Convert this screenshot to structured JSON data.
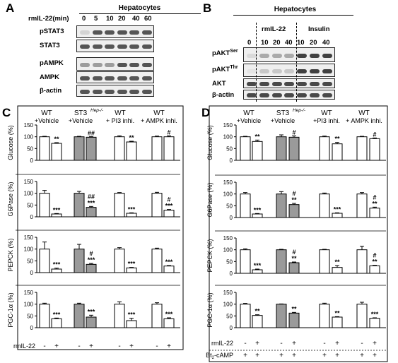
{
  "panel_labels": {
    "a": "A",
    "b": "B",
    "c": "C",
    "d": "D"
  },
  "panel_a": {
    "title": "Hepatocytes",
    "time_label": "rmIL-22(min)",
    "time_points": [
      "0",
      "5",
      "10",
      "20",
      "40",
      "60"
    ],
    "rows": [
      "pSTAT3",
      "STAT3",
      "pAMPK",
      "AMPK",
      "β-actin"
    ]
  },
  "panel_b": {
    "title": "Hepatocytes",
    "zero": "0",
    "group1": "rmIL-22",
    "group2": "Insulin",
    "time_points": [
      "10",
      "20",
      "40",
      "10",
      "20",
      "40"
    ],
    "rows": [
      {
        "base": "pAKT",
        "sup": "Ser"
      },
      {
        "base": "pAKT",
        "sup": "Thr"
      },
      {
        "base": "AKT",
        "sup": ""
      },
      {
        "base": "β-actin",
        "sup": ""
      }
    ]
  },
  "groups_c": [
    {
      "line1": "WT",
      "line2": "+Vehicle"
    },
    {
      "line1": "ST3",
      "sup": "Hep-/-",
      "line2": "+Vehicle"
    },
    {
      "line1": "WT",
      "line2": "+ PI3 inhi."
    },
    {
      "line1": "WT",
      "line2": "+ AMPK inhi."
    }
  ],
  "groups_d": [
    {
      "line1": "WT",
      "line2": "+Vehicle"
    },
    {
      "line1": "ST3",
      "sup": "Hep-/-",
      "line2": "+Vehicle"
    },
    {
      "line1": "WT",
      "line2": "+PI3 inhi."
    },
    {
      "line1": "WT",
      "line2": "+ AMPK inhi."
    }
  ],
  "row_labels": {
    "c": [
      "Glucose (%)",
      "G6Pase (%)",
      "PEPCK (%)",
      "PGC-1α (%)"
    ],
    "d": [
      "Glucose (%)",
      "G6Pase (%)",
      "PEPCK (%)",
      "PGC-1α (%)"
    ]
  },
  "treatment_c": {
    "label": "rmIL-22",
    "signs": [
      "-",
      "+",
      "-",
      "+",
      "-",
      "+",
      "-",
      "+"
    ]
  },
  "treatment_d": [
    {
      "label": "rmIL-22",
      "signs": [
        "-",
        "+",
        "-",
        "+",
        "-",
        "+",
        "-",
        "+"
      ]
    },
    {
      "label": "Bt",
      "sub": "2",
      "suffix": "-cAMP",
      "signs": [
        "+",
        "+",
        "+",
        "+",
        "+",
        "+",
        "+",
        "+"
      ]
    }
  ],
  "chart_data": [
    {
      "panel": "C",
      "row": "Glucose",
      "type": "bar",
      "ylabel": "Glucose (%)",
      "ylim": [
        0,
        150
      ],
      "yticks": [
        0,
        50,
        100,
        150
      ],
      "values": [
        100,
        72,
        100,
        98,
        100,
        78,
        100,
        100
      ],
      "errors": [
        2,
        3,
        2,
        3,
        4,
        3,
        3,
        4
      ],
      "fills": [
        "white",
        "white",
        "gray",
        "gray",
        "white",
        "white",
        "white",
        "white"
      ],
      "annotations": [
        "",
        "**",
        "",
        "##",
        "",
        "**",
        "",
        "#"
      ]
    },
    {
      "panel": "C",
      "row": "G6Pase",
      "type": "bar",
      "ylabel": "G6Pase (%)",
      "ylim": [
        0,
        150
      ],
      "yticks": [
        0,
        50,
        100,
        150
      ],
      "values": [
        100,
        12,
        100,
        40,
        100,
        15,
        100,
        28
      ],
      "errors": [
        12,
        2,
        8,
        4,
        3,
        2,
        4,
        3
      ],
      "fills": [
        "white",
        "white",
        "gray",
        "gray",
        "white",
        "white",
        "white",
        "white"
      ],
      "annotations": [
        "",
        "***",
        "",
        "##|***",
        "",
        "***",
        "",
        "#|***"
      ]
    },
    {
      "panel": "C",
      "row": "PEPCK",
      "type": "bar",
      "ylabel": "PEPCK (%)",
      "ylim": [
        0,
        150
      ],
      "yticks": [
        0,
        50,
        100,
        150
      ],
      "values": [
        100,
        15,
        100,
        35,
        100,
        20,
        100,
        28
      ],
      "errors": [
        30,
        4,
        20,
        4,
        6,
        2,
        4,
        2
      ],
      "fills": [
        "white",
        "white",
        "gray",
        "gray",
        "white",
        "white",
        "white",
        "white"
      ],
      "annotations": [
        "",
        "***",
        "",
        "#|***",
        "",
        "***",
        "",
        "***"
      ]
    },
    {
      "panel": "C",
      "row": "PGC-1α",
      "type": "bar",
      "ylabel": "PGC-1α (%)",
      "ylim": [
        0,
        150
      ],
      "yticks": [
        0,
        50,
        100,
        150
      ],
      "values": [
        100,
        38,
        100,
        45,
        100,
        30,
        100,
        38
      ],
      "errors": [
        4,
        3,
        4,
        8,
        10,
        10,
        6,
        4
      ],
      "fills": [
        "white",
        "white",
        "gray",
        "gray",
        "white",
        "white",
        "white",
        "white"
      ],
      "annotations": [
        "",
        "***",
        "",
        "***",
        "",
        "***",
        "",
        "***"
      ]
    },
    {
      "panel": "D",
      "row": "Glucose",
      "type": "bar",
      "ylabel": "Glucose (%)",
      "ylim": [
        0,
        150
      ],
      "yticks": [
        0,
        50,
        100,
        150
      ],
      "values": [
        100,
        80,
        100,
        98,
        100,
        70,
        100,
        92
      ],
      "errors": [
        2,
        6,
        8,
        6,
        3,
        6,
        2,
        3
      ],
      "fills": [
        "white",
        "white",
        "gray",
        "gray",
        "white",
        "white",
        "white",
        "white"
      ],
      "annotations": [
        "",
        "**",
        "",
        "#",
        "",
        "**",
        "",
        "#"
      ]
    },
    {
      "panel": "D",
      "row": "G6Pase",
      "type": "bar",
      "ylabel": "G6Pase (%)",
      "ylim": [
        0,
        150
      ],
      "yticks": [
        0,
        50,
        100,
        150
      ],
      "values": [
        100,
        15,
        100,
        55,
        100,
        18,
        100,
        40
      ],
      "errors": [
        6,
        2,
        10,
        5,
        4,
        2,
        6,
        4
      ],
      "fills": [
        "white",
        "white",
        "gray",
        "gray",
        "white",
        "white",
        "white",
        "white"
      ],
      "annotations": [
        "",
        "***",
        "",
        "#|**",
        "",
        "***",
        "",
        "#|**"
      ]
    },
    {
      "panel": "D",
      "row": "PEPCK",
      "type": "bar",
      "ylabel": "PEPCK (%)",
      "ylim": [
        0,
        150
      ],
      "yticks": [
        0,
        50,
        100,
        150
      ],
      "values": [
        100,
        15,
        100,
        45,
        100,
        25,
        100,
        32
      ],
      "errors": [
        4,
        3,
        2,
        3,
        2,
        8,
        15,
        2
      ],
      "fills": [
        "white",
        "white",
        "gray",
        "gray",
        "white",
        "white",
        "white",
        "white"
      ],
      "annotations": [
        "",
        "***",
        "",
        "#|**",
        "",
        "**",
        "",
        "#|**"
      ]
    },
    {
      "panel": "D",
      "row": "PGC-1α",
      "type": "bar",
      "ylabel": "PGC-1α (%)",
      "ylim": [
        0,
        150
      ],
      "yticks": [
        0,
        50,
        100,
        150
      ],
      "values": [
        100,
        52,
        100,
        62,
        100,
        45,
        100,
        40
      ],
      "errors": [
        3,
        3,
        1,
        3,
        4,
        2,
        8,
        2
      ],
      "fills": [
        "white",
        "white",
        "gray",
        "gray",
        "white",
        "white",
        "white",
        "white"
      ],
      "annotations": [
        "",
        "**",
        "",
        "**",
        "",
        "**",
        "",
        "***"
      ]
    }
  ]
}
